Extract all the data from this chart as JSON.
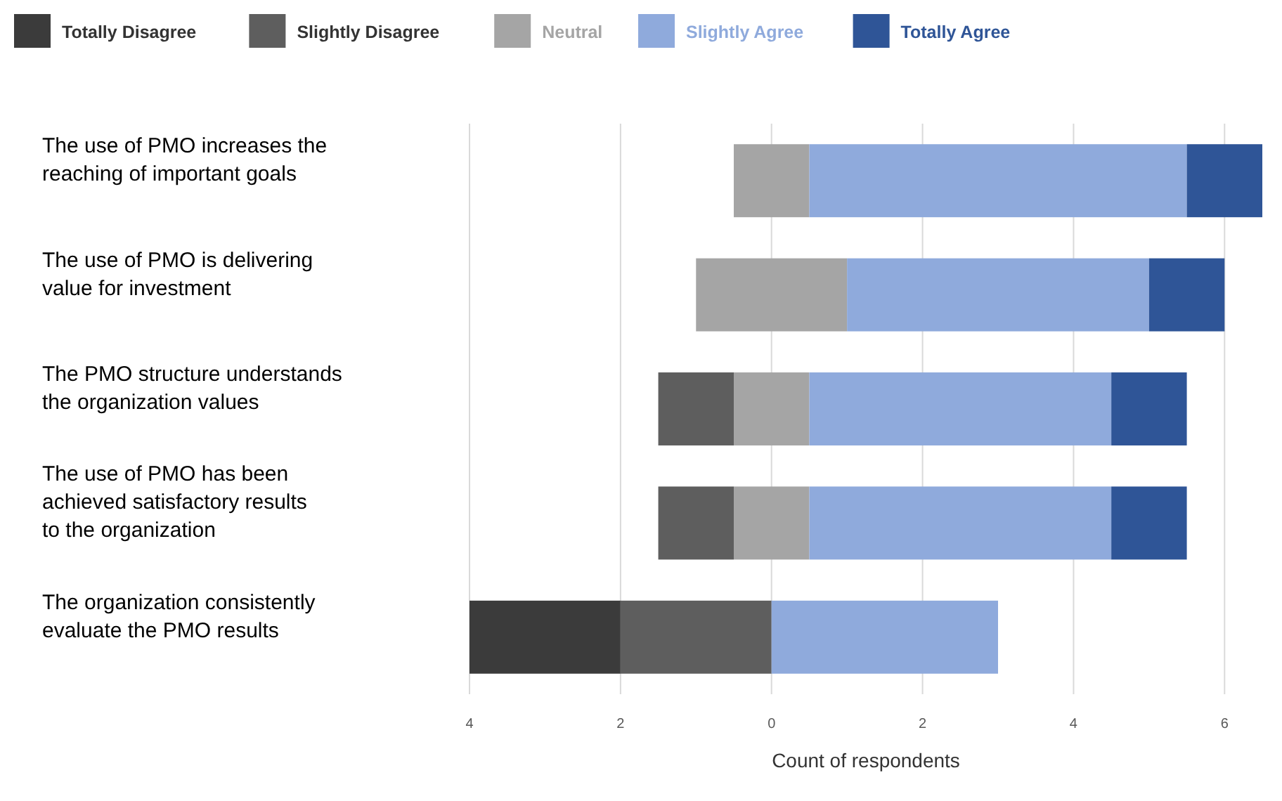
{
  "chart_data": {
    "type": "bar",
    "orientation": "horizontal",
    "xlabel": "Count of respondents",
    "categories": [
      "The use of PMO increases the reaching of important goals",
      "The use of PMO is delivering value for investment",
      "The PMO structure understands the organization values",
      "The use of PMO has been achieved satisfactory results to the organization",
      "The organization consistently evaluate the PMO results"
    ],
    "series": [
      {
        "name": "Totally Disagree",
        "color": "#3b3b3b",
        "values": [
          null,
          null,
          null,
          null,
          2
        ],
        "base": [
          null,
          null,
          null,
          null,
          -4
        ]
      },
      {
        "name": "Slightly Disagree",
        "color": "#5e5e5e",
        "values": [
          null,
          null,
          1,
          1,
          2
        ],
        "base": [
          null,
          null,
          -1.5,
          -1.5,
          -2
        ]
      },
      {
        "name": "Neutral",
        "color": "#a5a5a5",
        "values": [
          1,
          2,
          1,
          1,
          null
        ],
        "base": [
          -0.5,
          -1,
          -0.5,
          -0.5,
          null
        ]
      },
      {
        "name": "Slightly Agree",
        "color": "#8faadc",
        "values": [
          5,
          4,
          4,
          4,
          3
        ],
        "base": [
          0.5,
          1,
          0.5,
          0.5,
          0
        ]
      },
      {
        "name": "Totally Agree",
        "color": "#2f5597",
        "values": [
          1,
          1,
          1,
          1,
          null
        ],
        "base": [
          5.5,
          5,
          4.5,
          4.5,
          null
        ]
      }
    ],
    "xlim": [
      -4,
      6.5
    ],
    "xticks": [
      {
        "value": -4,
        "label": "4"
      },
      {
        "value": -2,
        "label": "2"
      },
      0,
      2,
      4,
      6
    ],
    "grid": "x",
    "legend": "top left"
  }
}
